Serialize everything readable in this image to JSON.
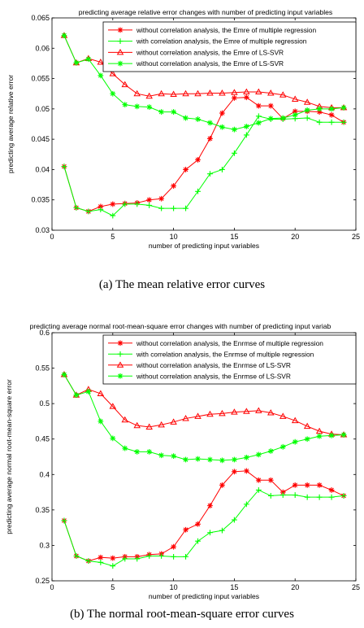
{
  "chart_data": [
    {
      "type": "line",
      "title": "predicting average relative error changes with number of predicting input variables",
      "xlabel": "number of predicting input variables",
      "ylabel": "predicting average relative error",
      "xlim": [
        0,
        25
      ],
      "ylim": [
        0.03,
        0.065
      ],
      "xticks": [
        "0",
        "5",
        "10",
        "15",
        "20",
        "25"
      ],
      "yticks": [
        "0.03",
        "0.035",
        "0.04",
        "0.045",
        "0.05",
        "0.055",
        "0.06",
        "0.065"
      ],
      "grid": false,
      "legend_position": "top-right",
      "caption": "(a)  The mean relative error curves",
      "x": [
        1,
        2,
        3,
        4,
        5,
        6,
        7,
        8,
        9,
        10,
        11,
        12,
        13,
        14,
        15,
        16,
        17,
        18,
        19,
        20,
        21,
        22,
        23,
        24
      ],
      "series": [
        {
          "name": "without correlation analysis, the Emre of multiple regression",
          "color": "#ff0000",
          "marker": "star",
          "values": [
            0.0405,
            0.0337,
            0.0331,
            0.0339,
            0.0343,
            0.0344,
            0.0345,
            0.035,
            0.0352,
            0.0373,
            0.04,
            0.0416,
            0.0451,
            0.0493,
            0.0518,
            0.0519,
            0.0505,
            0.0505,
            0.0484,
            0.0496,
            0.0496,
            0.0495,
            0.049,
            0.0478
          ]
        },
        {
          "name": "with correlation analysis, the Emre of multiple regression",
          "color": "#00ff00",
          "marker": "plus",
          "values": [
            0.0405,
            0.0337,
            0.0331,
            0.0334,
            0.0324,
            0.0343,
            0.0343,
            0.0341,
            0.0336,
            0.0336,
            0.0336,
            0.0364,
            0.0393,
            0.04,
            0.0427,
            0.0457,
            0.0488,
            0.0483,
            0.0483,
            0.0484,
            0.0485,
            0.0478,
            0.0478,
            0.0478
          ]
        },
        {
          "name": "without correlation analysis, the Emre of LS-SVR",
          "color": "#ff0000",
          "marker": "triangle",
          "values": [
            0.0621,
            0.0576,
            0.0583,
            0.0577,
            0.0558,
            0.054,
            0.0525,
            0.0521,
            0.0525,
            0.0524,
            0.0525,
            0.0525,
            0.0526,
            0.0526,
            0.0527,
            0.0528,
            0.0528,
            0.0526,
            0.0523,
            0.0516,
            0.0511,
            0.0504,
            0.0502,
            0.0502
          ]
        },
        {
          "name": "without correlation analysis, the Emre of LS-SVR",
          "color": "#00ff00",
          "marker": "star",
          "values": [
            0.0621,
            0.0576,
            0.0582,
            0.0555,
            0.0525,
            0.0507,
            0.0504,
            0.0503,
            0.0495,
            0.0495,
            0.0485,
            0.0483,
            0.0477,
            0.047,
            0.0466,
            0.0471,
            0.0477,
            0.0484,
            0.0485,
            0.049,
            0.0498,
            0.05,
            0.05,
            0.0502
          ]
        }
      ]
    },
    {
      "type": "line",
      "title": "predicting average normal root-mean-square error changes with number of predicting input variab",
      "xlabel": "number of predicting input variables",
      "ylabel": "predicting average normal root-mean-square error",
      "xlim": [
        0,
        25
      ],
      "ylim": [
        0.25,
        0.6
      ],
      "xticks": [
        "0",
        "5",
        "10",
        "15",
        "20",
        "25"
      ],
      "yticks": [
        "0.25",
        "0.3",
        "0.35",
        "0.4",
        "0.45",
        "0.5",
        "0.55",
        "0.6"
      ],
      "grid": false,
      "legend_position": "top-right",
      "caption": "(b) The normal root-mean-square error curves",
      "x": [
        1,
        2,
        3,
        4,
        5,
        6,
        7,
        8,
        9,
        10,
        11,
        12,
        13,
        14,
        15,
        16,
        17,
        18,
        19,
        20,
        21,
        22,
        23,
        24
      ],
      "series": [
        {
          "name": "without correlation analysis, the Enrmse of multiple regression",
          "color": "#ff0000",
          "marker": "star",
          "values": [
            0.335,
            0.285,
            0.278,
            0.283,
            0.282,
            0.284,
            0.284,
            0.287,
            0.288,
            0.298,
            0.322,
            0.33,
            0.356,
            0.385,
            0.404,
            0.405,
            0.392,
            0.392,
            0.375,
            0.385,
            0.385,
            0.385,
            0.378,
            0.37
          ]
        },
        {
          "name": "with correlation analysis, the Enrmse of multiple regression",
          "color": "#00ff00",
          "marker": "plus",
          "values": [
            0.335,
            0.285,
            0.278,
            0.276,
            0.271,
            0.281,
            0.281,
            0.285,
            0.285,
            0.284,
            0.284,
            0.306,
            0.318,
            0.321,
            0.336,
            0.358,
            0.378,
            0.37,
            0.371,
            0.371,
            0.368,
            0.368,
            0.368,
            0.37
          ]
        },
        {
          "name": "without correlation analysis, the Enrmse of LS-SVR",
          "color": "#ff0000",
          "marker": "triangle",
          "values": [
            0.541,
            0.512,
            0.52,
            0.514,
            0.496,
            0.477,
            0.469,
            0.467,
            0.47,
            0.474,
            0.479,
            0.482,
            0.485,
            0.486,
            0.488,
            0.489,
            0.49,
            0.487,
            0.482,
            0.476,
            0.468,
            0.461,
            0.457,
            0.456
          ]
        },
        {
          "name": "without correlation analysis, the Enrmse of LS-SVR",
          "color": "#00ff00",
          "marker": "star",
          "values": [
            0.541,
            0.512,
            0.517,
            0.475,
            0.451,
            0.437,
            0.432,
            0.432,
            0.427,
            0.426,
            0.421,
            0.422,
            0.421,
            0.42,
            0.421,
            0.424,
            0.428,
            0.433,
            0.439,
            0.446,
            0.45,
            0.454,
            0.455,
            0.456
          ]
        }
      ]
    }
  ]
}
